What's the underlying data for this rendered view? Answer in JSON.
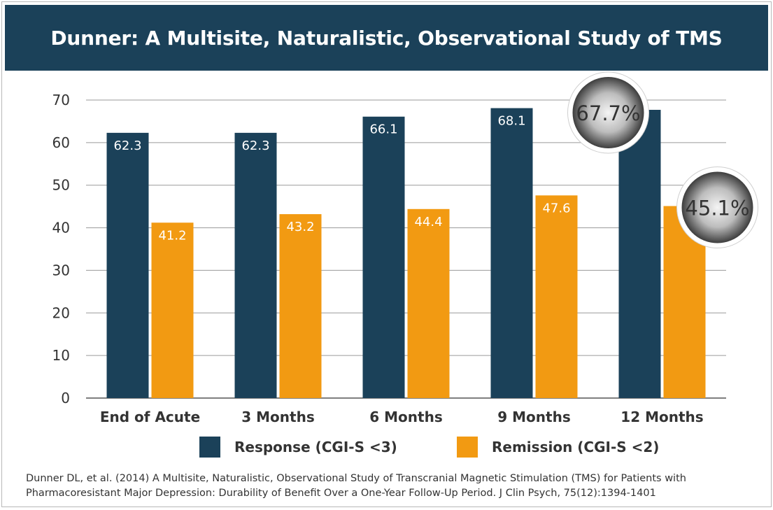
{
  "header": {
    "title": "Dunner: A Multisite, Naturalistic, Observational Study of TMS"
  },
  "colors": {
    "header_bg": "#1b4159",
    "response": "#1b4159",
    "remission": "#f29a12"
  },
  "chart_data": {
    "type": "bar",
    "categories": [
      "End of Acute",
      "3 Months",
      "6 Months",
      "9 Months",
      "12 Months"
    ],
    "series": [
      {
        "name": "Response (CGI-S <3)",
        "values": [
          62.3,
          62.3,
          66.1,
          68.1,
          67.7
        ],
        "labels": [
          "62.3",
          "62.3",
          "66.1",
          "68.1",
          ""
        ]
      },
      {
        "name": "Remission (CGI-S <2)",
        "values": [
          41.2,
          43.2,
          44.4,
          47.6,
          45.1
        ],
        "labels": [
          "41.2",
          "43.2",
          "44.4",
          "47.6",
          ""
        ]
      }
    ],
    "callouts": [
      "67.7%",
      "45.1%"
    ],
    "yticks": [
      "0",
      "10",
      "20",
      "30",
      "40",
      "50",
      "60",
      "70"
    ],
    "ylim": [
      0,
      70
    ],
    "grid": true,
    "legend_position": "bottom"
  },
  "citation": {
    "line1": "Dunner DL, et al. (2014) A Multisite, Naturalistic, Observational Study of Transcranial Magnetic Stimulation (TMS) for Patients with",
    "line2": "Pharmacoresistant Major Depression: Durability of Benefit Over a One-Year Follow-Up Period. J Clin Psych, 75(12):1394-1401"
  }
}
